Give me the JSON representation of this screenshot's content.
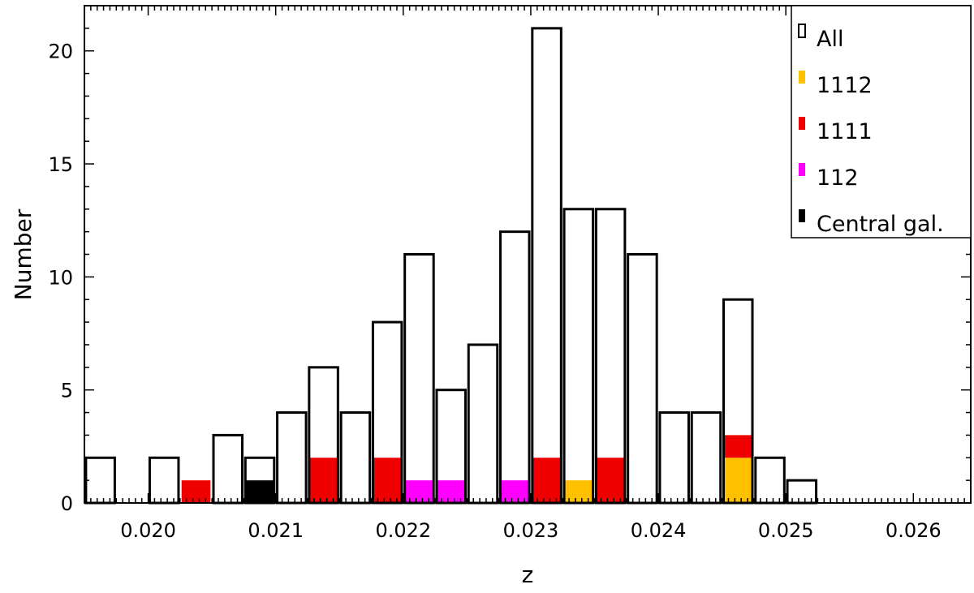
{
  "chart_data": {
    "type": "bar",
    "title": "",
    "xlabel": "z",
    "ylabel": "Number",
    "xlim": [
      0.0195,
      0.02645
    ],
    "ylim": [
      0,
      22
    ],
    "bin_width": 0.00025,
    "x_ticks": [
      "0.020",
      "0.021",
      "0.022",
      "0.023",
      "0.024",
      "0.025",
      "0.026"
    ],
    "y_ticks": [
      "0",
      "5",
      "10",
      "15",
      "20"
    ],
    "bin_centers": [
      0.019625,
      0.019875,
      0.020125,
      0.020375,
      0.020625,
      0.020875,
      0.021125,
      0.021375,
      0.021625,
      0.021875,
      0.022125,
      0.022375,
      0.022625,
      0.022875,
      0.023125,
      0.023375,
      0.023625,
      0.023875,
      0.024125,
      0.024375,
      0.024625,
      0.024875,
      0.025125,
      0.025375,
      0.025625,
      0.025875,
      0.026125
    ],
    "series": [
      {
        "name": "All",
        "color": "#ffffff",
        "values": [
          2,
          0,
          2,
          0,
          3,
          2,
          4,
          6,
          4,
          8,
          11,
          5,
          7,
          12,
          21,
          13,
          13,
          11,
          4,
          4,
          9,
          2,
          1,
          0,
          0,
          0,
          0
        ]
      },
      {
        "name": "1112",
        "color": "#ffc000",
        "values": [
          0,
          0,
          0,
          0,
          0,
          0,
          0,
          0,
          0,
          0,
          0,
          0,
          0,
          0,
          0,
          1,
          0,
          0,
          0,
          0,
          2,
          0,
          0,
          0,
          0,
          0,
          0
        ]
      },
      {
        "name": "1111",
        "color": "#ee0000",
        "values": [
          0,
          0,
          0,
          1,
          0,
          0,
          0,
          2,
          0,
          2,
          0,
          0,
          0,
          0,
          2,
          0,
          2,
          0,
          0,
          0,
          1,
          0,
          0,
          0,
          0,
          0,
          0
        ]
      },
      {
        "name": "112",
        "color": "#ff00ff",
        "values": [
          0,
          0,
          0,
          0,
          0,
          0,
          0,
          0,
          0,
          0,
          1,
          1,
          0,
          1,
          0,
          0,
          0,
          0,
          0,
          0,
          0,
          0,
          0,
          0,
          0,
          0,
          0
        ]
      },
      {
        "name": "Central gal.",
        "color": "#000000",
        "values": [
          0,
          0,
          0,
          0,
          0,
          1,
          0,
          0,
          0,
          0,
          0,
          0,
          0,
          0,
          0,
          0,
          0,
          0,
          0,
          0,
          0,
          0,
          0,
          0,
          0,
          0,
          0
        ]
      }
    ],
    "legend": {
      "placement": "top-right",
      "entries": [
        {
          "label": "All",
          "color": "#ffffff"
        },
        {
          "label": "1112",
          "color": "#ffc000"
        },
        {
          "label": "1111",
          "color": "#ee0000"
        },
        {
          "label": "112",
          "color": "#ff00ff"
        },
        {
          "label": "Central gal.",
          "color": "#000000"
        }
      ]
    }
  }
}
